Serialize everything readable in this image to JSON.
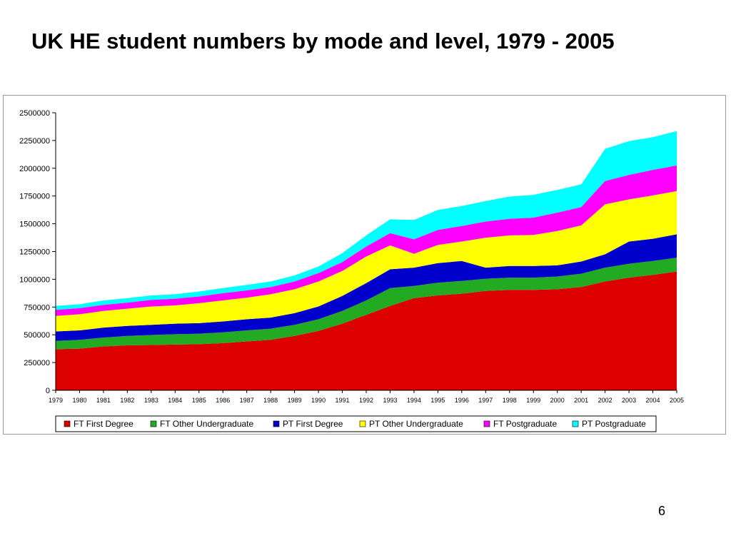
{
  "slide": {
    "title": "UK HE student numbers by mode and level, 1979 - 2005",
    "page_number": "6"
  },
  "chart_data": {
    "type": "area",
    "stacked": true,
    "title": "",
    "xlabel": "",
    "ylabel": "",
    "ylim": [
      0,
      2500000
    ],
    "y_ticks": [
      0,
      250000,
      500000,
      750000,
      1000000,
      1250000,
      1500000,
      1750000,
      2000000,
      2250000,
      2500000
    ],
    "grid": false,
    "legend_position": "bottom",
    "x": [
      "1979",
      "1980",
      "1981",
      "1982",
      "1983",
      "1984",
      "1985",
      "1986",
      "1987",
      "1988",
      "1989",
      "1990",
      "1991",
      "1992",
      "1993",
      "1994",
      "1995",
      "1996",
      "1997",
      "1998",
      "1999",
      "2000",
      "2001",
      "2002",
      "2003",
      "2004",
      "2005"
    ],
    "series": [
      {
        "name": "FT First Degree",
        "color": "#dd0000",
        "values": [
          370000,
          375000,
          395000,
          405000,
          408000,
          412000,
          415000,
          425000,
          440000,
          455000,
          490000,
          535000,
          600000,
          680000,
          760000,
          830000,
          855000,
          870000,
          895000,
          905000,
          905000,
          910000,
          930000,
          980000,
          1015000,
          1040000,
          1070000
        ]
      },
      {
        "name": "FT Other Undergraduate",
        "color": "#22aa22",
        "values": [
          75000,
          80000,
          80000,
          85000,
          90000,
          93000,
          95000,
          97000,
          100000,
          100000,
          100000,
          105000,
          115000,
          130000,
          160000,
          110000,
          115000,
          115000,
          110000,
          110000,
          110000,
          115000,
          120000,
          125000,
          125000,
          125000,
          125000
        ]
      },
      {
        "name": "PT First Degree",
        "color": "#0000cc",
        "values": [
          85000,
          85000,
          90000,
          90000,
          92000,
          95000,
          95000,
          98000,
          100000,
          100000,
          105000,
          115000,
          135000,
          155000,
          170000,
          165000,
          175000,
          180000,
          100000,
          105000,
          105000,
          100000,
          110000,
          120000,
          200000,
          200000,
          210000
        ]
      },
      {
        "name": "PT Other Undergraduate",
        "color": "#ffff00",
        "values": [
          140000,
          145000,
          150000,
          155000,
          165000,
          165000,
          180000,
          190000,
          195000,
          210000,
          215000,
          225000,
          225000,
          240000,
          215000,
          125000,
          165000,
          175000,
          270000,
          275000,
          280000,
          310000,
          325000,
          450000,
          380000,
          390000,
          390000
        ]
      },
      {
        "name": "FT Postgraduate",
        "color": "#ff00ff",
        "values": [
          55000,
          55000,
          55000,
          55000,
          60000,
          60000,
          60000,
          65000,
          65000,
          65000,
          70000,
          75000,
          80000,
          90000,
          110000,
          130000,
          135000,
          140000,
          145000,
          150000,
          155000,
          165000,
          165000,
          210000,
          220000,
          230000,
          230000
        ]
      },
      {
        "name": "PT Postgraduate",
        "color": "#00ffff",
        "values": [
          35000,
          35000,
          40000,
          40000,
          40000,
          40000,
          45000,
          45000,
          50000,
          50000,
          55000,
          60000,
          80000,
          100000,
          125000,
          175000,
          180000,
          180000,
          185000,
          200000,
          205000,
          205000,
          205000,
          290000,
          305000,
          295000,
          310000
        ]
      }
    ]
  }
}
